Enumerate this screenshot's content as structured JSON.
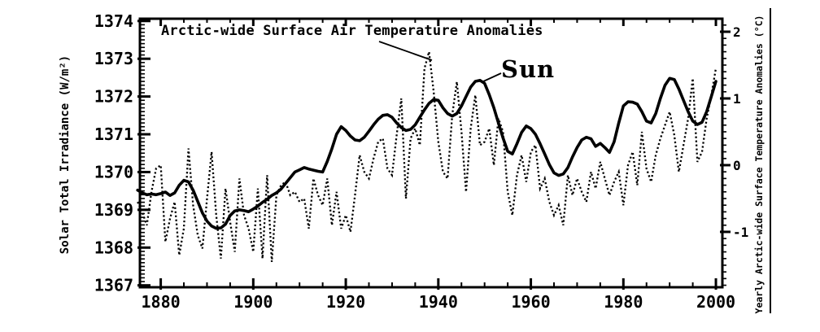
{
  "figure": {
    "title": "Arctic-wide Surface Air Temperature Anomalies",
    "sun_label": "Sun",
    "left_axis_label": "Solar Total Irradiance (W/m²)",
    "right_axis_label": "Yearly Arctic-wide Surface Temperature Anomalies (°C)",
    "ink_color": "#000000",
    "background_color": "#ffffff"
  },
  "chart_data": {
    "type": "line",
    "title": "Arctic-wide Surface Air Temperature Anomalies",
    "xlabel": "",
    "ylabel_left": "Solar Total Irradiance (W/m²)",
    "ylabel_right": "Yearly Arctic-wide Surface Temperature Anomalies (°C)",
    "grid": false,
    "legend_position": "inline annotations with leader lines",
    "x": {
      "start": 1875,
      "end": 2000,
      "step": 1
    },
    "x_axis": {
      "tick_labels": [
        "1880",
        "1900",
        "1920",
        "1940",
        "1960",
        "1980",
        "2000"
      ],
      "ticks_major": [
        1880,
        1900,
        1920,
        1940,
        1960,
        1980,
        2000
      ],
      "minor_step": 5,
      "range": [
        1875.5,
        2001.4
      ]
    },
    "left_axis": {
      "tick_labels": [
        "1374",
        "1373",
        "1372",
        "1371",
        "1370",
        "1369",
        "1368",
        "1367"
      ],
      "ticks_major": [
        1367,
        1368,
        1369,
        1370,
        1371,
        1372,
        1373,
        1374
      ],
      "minor_step": 0.1,
      "range": [
        1366.95,
        1374.06
      ]
    },
    "right_axis": {
      "tick_labels": [
        "2",
        "1",
        "0",
        "-1"
      ],
      "ticks_major": [
        -1,
        0,
        1,
        2
      ],
      "minor_step": 0.1,
      "range": [
        -1.83,
        2.195
      ]
    },
    "series": [
      {
        "name": "Arctic-wide Surface Air Temperature Anomalies",
        "axis": "right",
        "units": "°C",
        "style": "dotted",
        "color": "#000000",
        "values": [
          -0.55,
          -0.7,
          -0.9,
          -0.4,
          -0.05,
          0.0,
          -1.15,
          -0.8,
          -0.55,
          -1.35,
          -0.95,
          0.25,
          -0.6,
          -1.05,
          -1.25,
          -0.5,
          0.2,
          -0.75,
          -1.4,
          -0.35,
          -0.85,
          -1.3,
          -0.2,
          -0.75,
          -0.95,
          -1.3,
          -0.35,
          -1.4,
          -0.15,
          -1.45,
          -0.45,
          -0.3,
          -0.25,
          -0.45,
          -0.4,
          -0.55,
          -0.5,
          -0.95,
          -0.2,
          -0.45,
          -0.6,
          -0.2,
          -0.9,
          -0.4,
          -0.95,
          -0.75,
          -1.0,
          -0.45,
          0.15,
          -0.1,
          -0.2,
          0.1,
          0.35,
          0.4,
          -0.05,
          -0.15,
          0.45,
          1.0,
          -0.5,
          0.4,
          0.55,
          0.3,
          1.45,
          1.7,
          1.1,
          0.35,
          -0.1,
          -0.2,
          0.75,
          1.25,
          0.5,
          -0.4,
          0.55,
          1.05,
          0.3,
          0.35,
          0.55,
          0.0,
          0.7,
          0.5,
          -0.4,
          -0.75,
          -0.15,
          0.15,
          -0.25,
          0.2,
          0.3,
          -0.35,
          -0.2,
          -0.55,
          -0.75,
          -0.6,
          -0.9,
          -0.15,
          -0.45,
          -0.2,
          -0.4,
          -0.55,
          -0.1,
          -0.35,
          0.05,
          -0.2,
          -0.45,
          -0.25,
          -0.1,
          -0.6,
          0.0,
          0.2,
          -0.3,
          0.5,
          -0.05,
          -0.25,
          0.15,
          0.4,
          0.6,
          0.8,
          0.45,
          -0.1,
          0.3,
          0.7,
          1.3,
          0.05,
          0.2,
          0.7,
          1.05,
          1.45
        ]
      },
      {
        "name": "Sun (Solar Total Irradiance)",
        "axis": "left",
        "units": "W/m²",
        "style": "solid",
        "color": "#000000",
        "values": [
          1369.52,
          1369.45,
          1369.4,
          1369.42,
          1369.4,
          1369.43,
          1369.47,
          1369.38,
          1369.45,
          1369.65,
          1369.78,
          1369.74,
          1369.52,
          1369.22,
          1368.92,
          1368.7,
          1368.57,
          1368.51,
          1368.52,
          1368.62,
          1368.85,
          1368.97,
          1369.0,
          1368.98,
          1368.95,
          1369.02,
          1369.1,
          1369.2,
          1369.28,
          1369.38,
          1369.45,
          1369.55,
          1369.7,
          1369.85,
          1370.0,
          1370.06,
          1370.12,
          1370.08,
          1370.05,
          1370.02,
          1370.0,
          1370.28,
          1370.62,
          1371.0,
          1371.2,
          1371.1,
          1370.95,
          1370.85,
          1370.83,
          1370.92,
          1371.08,
          1371.25,
          1371.4,
          1371.5,
          1371.52,
          1371.45,
          1371.3,
          1371.18,
          1371.1,
          1371.13,
          1371.25,
          1371.45,
          1371.65,
          1371.82,
          1371.92,
          1371.9,
          1371.7,
          1371.55,
          1371.48,
          1371.55,
          1371.75,
          1372.0,
          1372.25,
          1372.4,
          1372.43,
          1372.35,
          1372.05,
          1371.7,
          1371.3,
          1370.9,
          1370.55,
          1370.48,
          1370.75,
          1371.05,
          1371.22,
          1371.15,
          1371.0,
          1370.75,
          1370.48,
          1370.2,
          1369.98,
          1369.91,
          1369.95,
          1370.12,
          1370.4,
          1370.65,
          1370.85,
          1370.92,
          1370.88,
          1370.68,
          1370.76,
          1370.65,
          1370.52,
          1370.8,
          1371.3,
          1371.75,
          1371.86,
          1371.85,
          1371.8,
          1371.6,
          1371.35,
          1371.3,
          1371.55,
          1371.95,
          1372.3,
          1372.48,
          1372.45,
          1372.2,
          1371.9,
          1371.6,
          1371.35,
          1371.26,
          1371.32,
          1371.6,
          1372.0,
          1372.4
        ]
      }
    ]
  }
}
